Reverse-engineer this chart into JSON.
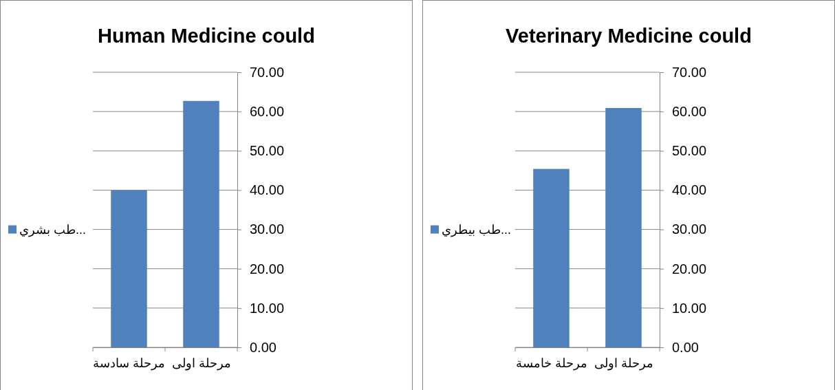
{
  "chart_data": [
    {
      "type": "bar",
      "title": "Human Medicine could",
      "categories": [
        "مرحلة سادسة",
        "مرحلة اولى"
      ],
      "series": [
        {
          "name": "طب بشري...",
          "color": "#4f81bd",
          "values": [
            40,
            62.7
          ]
        }
      ],
      "ylim": [
        0,
        70
      ],
      "yticks": [
        {
          "value": 0,
          "label": "0.00"
        },
        {
          "value": 10,
          "label": "10.00"
        },
        {
          "value": 20,
          "label": "20.00"
        },
        {
          "value": 30,
          "label": "30.00"
        },
        {
          "value": 40,
          "label": "40.00"
        },
        {
          "value": 50,
          "label": "50.00"
        },
        {
          "value": 60,
          "label": "60.00"
        },
        {
          "value": 70,
          "label": "70.00"
        }
      ],
      "grid": "y",
      "legend": "left"
    },
    {
      "type": "bar",
      "title": "Veterinary Medicine could",
      "categories": [
        "مرحلة خامسة",
        "مرحلة اولى"
      ],
      "series": [
        {
          "name": "طب بيطري...",
          "color": "#4f81bd",
          "values": [
            45.4,
            60.9
          ]
        }
      ],
      "ylim": [
        0,
        70
      ],
      "yticks": [
        {
          "value": 0,
          "label": "0.00"
        },
        {
          "value": 10,
          "label": "10.00"
        },
        {
          "value": 20,
          "label": "20.00"
        },
        {
          "value": 30,
          "label": "30.00"
        },
        {
          "value": 40,
          "label": "40.00"
        },
        {
          "value": 50,
          "label": "50.00"
        },
        {
          "value": 60,
          "label": "60.00"
        },
        {
          "value": 70,
          "label": "70.00"
        }
      ],
      "grid": "y",
      "legend": "left"
    }
  ]
}
